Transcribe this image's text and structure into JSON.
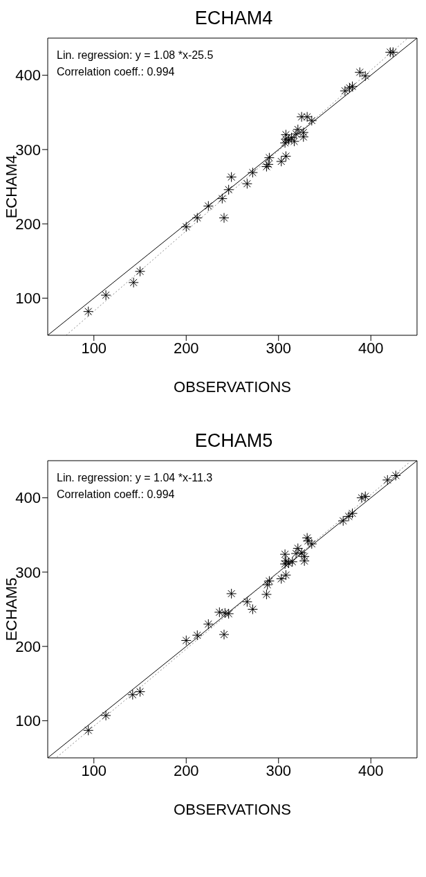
{
  "chart_data": [
    {
      "type": "scatter",
      "title": "ECHAM4",
      "xlabel": "OBSERVATIONS",
      "ylabel": "ECHAM4",
      "xlim": [
        50,
        450
      ],
      "ylim": [
        50,
        450
      ],
      "xticks": [
        100,
        200,
        300,
        400
      ],
      "yticks": [
        100,
        200,
        300,
        400
      ],
      "grid": false,
      "annotations": [
        "Lin. regression: y = 1.08 *x-25.5",
        "Correlation coeff.: 0.994"
      ],
      "series": [
        {
          "color": "#000000",
          "marker": "cross",
          "x": [
            421,
            424,
            388,
            394,
            372,
            377,
            380,
            325,
            331,
            336,
            321,
            327,
            327,
            308,
            308,
            311,
            314,
            317,
            307,
            319,
            308,
            303,
            290,
            287,
            289,
            272,
            266,
            249,
            246,
            239,
            241,
            224,
            212,
            200,
            113,
            143,
            150,
            94
          ],
          "values": [
            431,
            431,
            404,
            399,
            379,
            383,
            385,
            344,
            344,
            339,
            327,
            323,
            317,
            320,
            314,
            313,
            316,
            311,
            309,
            321,
            291,
            284,
            289,
            277,
            280,
            269,
            254,
            263,
            246,
            234,
            208,
            224,
            208,
            196,
            104,
            121,
            136,
            82
          ]
        },
        {
          "type": "line",
          "color": "#000000",
          "marker": "none",
          "line_style": "solid",
          "x": [
            50,
            450
          ],
          "values": [
            50,
            450
          ]
        },
        {
          "type": "line",
          "color": "#888888",
          "marker": "none",
          "line_style": "dotted",
          "x": [
            70,
            440
          ],
          "values": [
            50,
            450
          ]
        }
      ]
    },
    {
      "type": "scatter",
      "title": "ECHAM5",
      "xlabel": "OBSERVATIONS",
      "ylabel": "ECHAM5",
      "xlim": [
        50,
        450
      ],
      "ylim": [
        50,
        450
      ],
      "xticks": [
        100,
        200,
        300,
        400
      ],
      "yticks": [
        100,
        200,
        300,
        400
      ],
      "grid": false,
      "annotations": [
        "Lin. regression: y = 1.04 *x-11.3",
        "Correlation coeff.: 0.994"
      ],
      "series": [
        {
          "color": "#000000",
          "marker": "cross",
          "x": [
            418,
            427,
            390,
            394,
            370,
            376,
            380,
            331,
            332,
            336,
            321,
            325,
            328,
            328,
            307,
            308,
            311,
            315,
            307,
            319,
            308,
            303,
            290,
            288,
            287,
            249,
            266,
            272,
            236,
            242,
            246,
            241,
            224,
            212,
            200,
            150,
            142,
            113,
            94
          ],
          "values": [
            424,
            430,
            400,
            402,
            369,
            375,
            379,
            346,
            342,
            338,
            332,
            326,
            321,
            315,
            324,
            315,
            312,
            314,
            311,
            325,
            296,
            291,
            288,
            283,
            270,
            271,
            260,
            250,
            246,
            245,
            244,
            216,
            230,
            215,
            208,
            139,
            135,
            107,
            87
          ]
        },
        {
          "type": "line",
          "color": "#000000",
          "marker": "none",
          "line_style": "solid",
          "x": [
            50,
            450
          ],
          "values": [
            50,
            450
          ]
        },
        {
          "type": "line",
          "color": "#888888",
          "marker": "none",
          "line_style": "dotted",
          "x": [
            60,
            442
          ],
          "values": [
            51,
            448
          ]
        }
      ]
    }
  ]
}
